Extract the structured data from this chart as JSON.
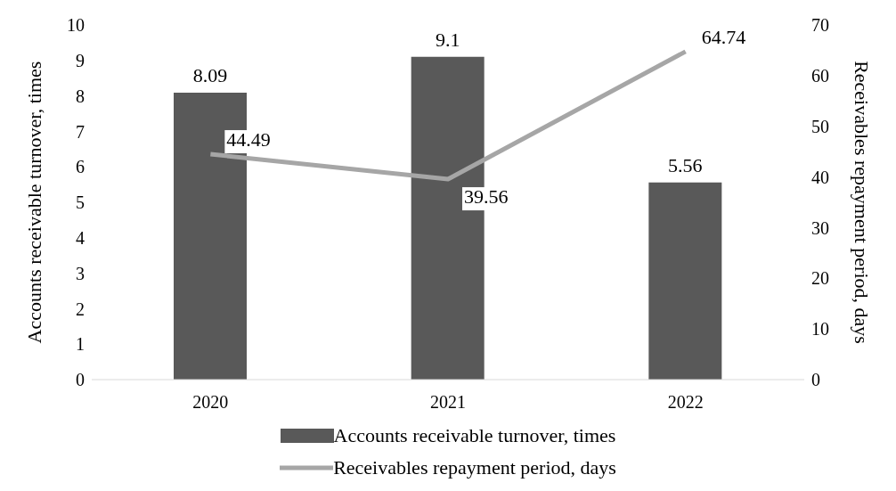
{
  "chart_data": {
    "type": "bar",
    "categories": [
      "2020",
      "2021",
      "2022"
    ],
    "series": [
      {
        "name": "Accounts receivable turnover, times",
        "color": "#595959",
        "values": [
          8.09,
          9.1,
          5.56
        ]
      },
      {
        "name": "Receivables repayment period, days",
        "type": "line",
        "axis": "y2",
        "color": "#a6a6a6",
        "values": [
          44.49,
          39.56,
          64.74
        ]
      }
    ],
    "ylabel": "Accounts receivable turnover, times",
    "y2label": "Receivables repayment period, days",
    "ylim": [
      0,
      10
    ],
    "yticks": [
      0,
      1,
      2,
      3,
      4,
      5,
      6,
      7,
      8,
      9,
      10
    ],
    "y2lim": [
      0,
      70
    ],
    "y2ticks": [
      0,
      10,
      20,
      30,
      40,
      50,
      60,
      70
    ],
    "data_labels": true,
    "legend": "bottom",
    "grid": false,
    "marker": "none",
    "line_style": "solid"
  }
}
